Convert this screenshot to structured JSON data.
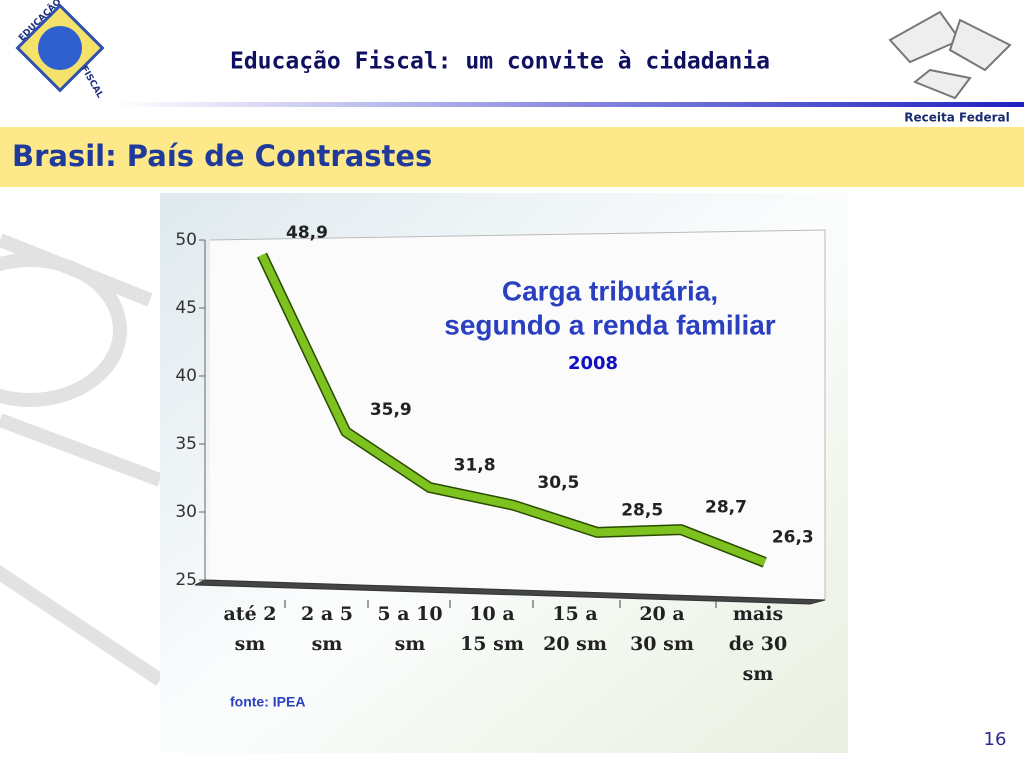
{
  "header": {
    "title": "Educação Fiscal: um convite à cidadania",
    "logo_left": [
      "EDUCAÇÃO",
      "FISCAL"
    ],
    "logo_right": "Receita Federal"
  },
  "slide": {
    "title": "Brasil: País de Contrastes",
    "page_number": "16"
  },
  "chart_data": {
    "type": "line",
    "title": [
      "Carga tributária,",
      "segundo a renda familiar"
    ],
    "subtitle": "2008",
    "categories": [
      [
        "até 2",
        "sm"
      ],
      [
        "2 a 5",
        "sm"
      ],
      [
        "5 a 10",
        "sm"
      ],
      [
        "10 a",
        "15 sm"
      ],
      [
        "15 a",
        "20 sm"
      ],
      [
        "20 a",
        "30 sm"
      ],
      [
        "mais",
        "de 30",
        "sm"
      ]
    ],
    "values": [
      48.9,
      35.9,
      31.8,
      30.5,
      28.5,
      28.7,
      26.3
    ],
    "value_labels": [
      "48,9",
      "35,9",
      "31,8",
      "30,5",
      "28,5",
      "28,7",
      "26,3"
    ],
    "ylim": [
      25,
      50
    ],
    "yticks": [
      25,
      30,
      35,
      40,
      45,
      50
    ],
    "color": "#7dc21e",
    "note": "fonte: IPEA"
  }
}
